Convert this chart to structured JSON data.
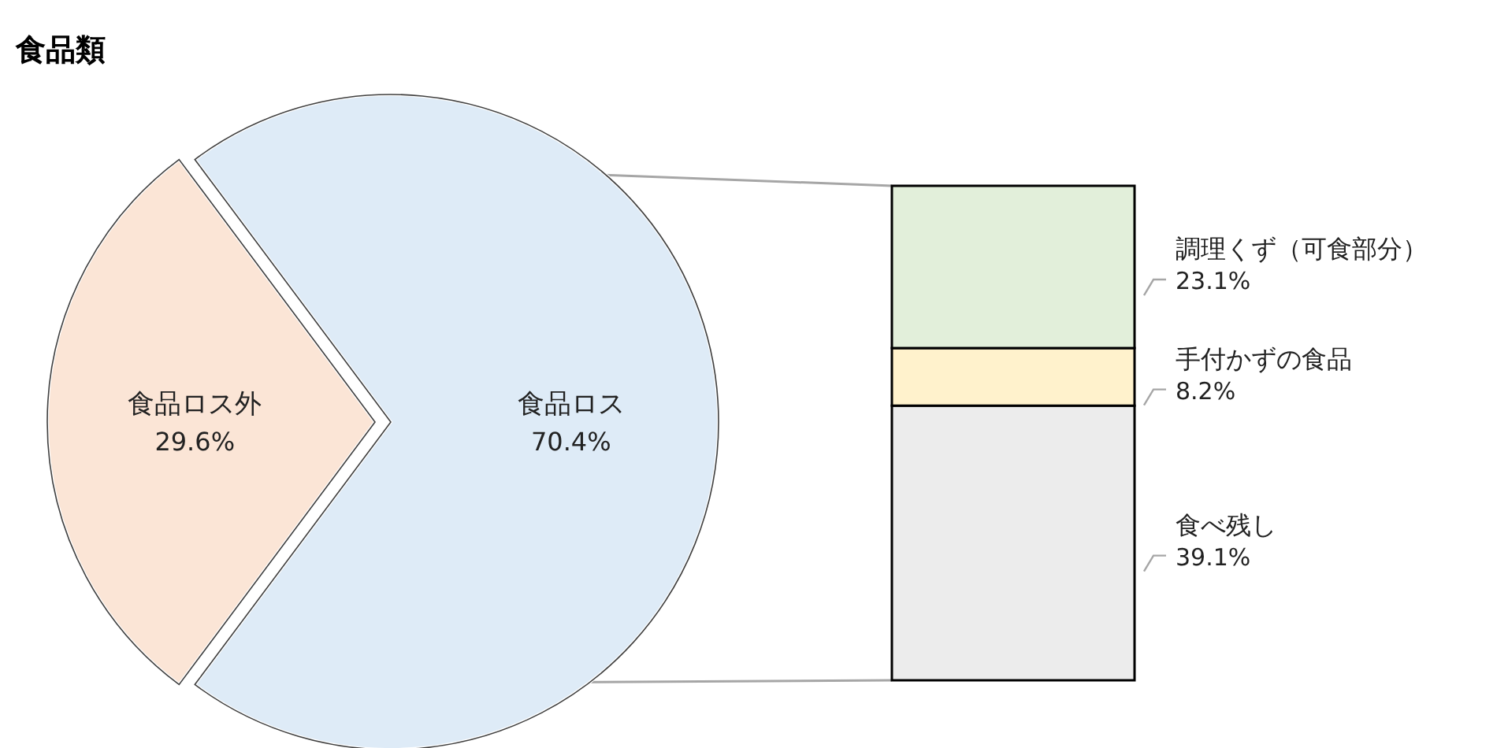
{
  "chart_data": [
    {
      "type": "pie",
      "title": "食品類",
      "categories": [
        "食品ロス外",
        "食品ロス"
      ],
      "values": [
        29.6,
        70.4
      ],
      "colors": [
        "#fbe5d6",
        "#deebf7"
      ],
      "value_labels": [
        "29.6%",
        "70.4%"
      ]
    },
    {
      "type": "bar",
      "stacked": true,
      "categories": [
        null
      ],
      "series": [
        {
          "name": "食べ残し",
          "color": "#ececec",
          "values": [
            39.1
          ],
          "value_labels": [
            "39.1%"
          ]
        },
        {
          "name": "手付かずの食品",
          "color": "#fff2cc",
          "values": [
            8.2
          ],
          "value_labels": [
            "8.2%"
          ]
        },
        {
          "name": "調理くず（可食部分）",
          "color": "#e2efda",
          "values": [
            23.1
          ],
          "value_labels": [
            "23.1%"
          ]
        }
      ]
    }
  ]
}
